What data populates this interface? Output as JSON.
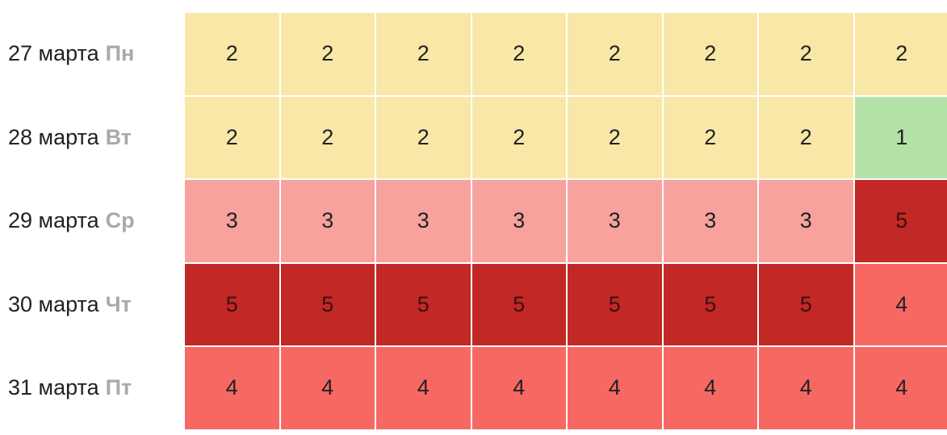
{
  "table": {
    "rows": [
      {
        "date": "27 марта",
        "weekday": "Пн",
        "cells": [
          2,
          2,
          2,
          2,
          2,
          2,
          2,
          2
        ]
      },
      {
        "date": "28 марта",
        "weekday": "Вт",
        "cells": [
          2,
          2,
          2,
          2,
          2,
          2,
          2,
          1
        ]
      },
      {
        "date": "29 марта",
        "weekday": "Ср",
        "cells": [
          3,
          3,
          3,
          3,
          3,
          3,
          3,
          5
        ]
      },
      {
        "date": "30 марта",
        "weekday": "Чт",
        "cells": [
          5,
          5,
          5,
          5,
          5,
          5,
          5,
          4
        ]
      },
      {
        "date": "31 марта",
        "weekday": "Пт",
        "cells": [
          4,
          4,
          4,
          4,
          4,
          4,
          4,
          4
        ]
      }
    ]
  }
}
